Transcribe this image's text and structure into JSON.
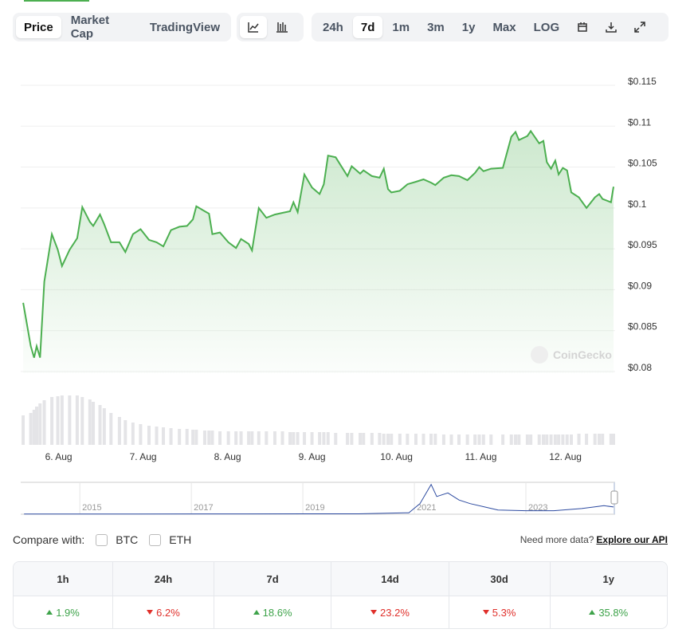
{
  "tabs": [
    "Price",
    "Market Cap",
    "TradingView"
  ],
  "active_tab": 0,
  "ranges": [
    "24h",
    "7d",
    "1m",
    "3m",
    "1y",
    "Max",
    "LOG"
  ],
  "active_range": 1,
  "chart_data": {
    "type": "line",
    "color": "#4caf50",
    "grid": true,
    "x": [
      5.58,
      5.67,
      5.71,
      5.74,
      5.78,
      5.83,
      5.92,
      5.99,
      6.04,
      6.13,
      6.22,
      6.28,
      6.37,
      6.41,
      6.49,
      6.54,
      6.62,
      6.72,
      6.79,
      6.88,
      6.97,
      7.07,
      7.16,
      7.24,
      7.33,
      7.43,
      7.52,
      7.59,
      7.63,
      7.73,
      7.78,
      7.82,
      7.91,
      8.01,
      8.1,
      8.16,
      8.25,
      8.29,
      8.37,
      8.46,
      8.56,
      8.65,
      8.74,
      8.78,
      8.83,
      8.91,
      9.0,
      9.09,
      9.14,
      9.19,
      9.28,
      9.42,
      9.47,
      9.57,
      9.61,
      9.71,
      9.8,
      9.85,
      9.9,
      9.94,
      10.04,
      10.13,
      10.23,
      10.32,
      10.41,
      10.46,
      10.56,
      10.65,
      10.74,
      10.84,
      10.93,
      10.98,
      11.03,
      11.12,
      11.26,
      11.36,
      11.41,
      11.45,
      11.55,
      11.59,
      11.69,
      11.74,
      11.78,
      11.83,
      11.88,
      11.92,
      11.97,
      12.02,
      12.07,
      12.16,
      12.25,
      12.35,
      12.4,
      12.44,
      12.54,
      12.57
    ],
    "values": [
      0.0884,
      0.0831,
      0.0817,
      0.0831,
      0.0817,
      0.091,
      0.0968,
      0.0949,
      0.0929,
      0.0949,
      0.0963,
      0.1001,
      0.0983,
      0.0978,
      0.0992,
      0.098,
      0.0958,
      0.0958,
      0.0946,
      0.0968,
      0.0974,
      0.0961,
      0.0958,
      0.0953,
      0.0973,
      0.0977,
      0.0978,
      0.0986,
      0.1002,
      0.0996,
      0.0993,
      0.0968,
      0.097,
      0.0958,
      0.0951,
      0.0962,
      0.0956,
      0.0948,
      0.1,
      0.0988,
      0.0992,
      0.0994,
      0.0996,
      0.1007,
      0.0995,
      0.1041,
      0.1025,
      0.1017,
      0.1029,
      0.1064,
      0.1062,
      0.1039,
      0.1051,
      0.1042,
      0.1046,
      0.1039,
      0.1037,
      0.1048,
      0.1023,
      0.1019,
      0.1021,
      0.1029,
      0.1032,
      0.1035,
      0.1031,
      0.1028,
      0.1037,
      0.104,
      0.1039,
      0.1034,
      0.1043,
      0.105,
      0.1045,
      0.1048,
      0.1049,
      0.1087,
      0.1093,
      0.1083,
      0.1088,
      0.1094,
      0.1079,
      0.1082,
      0.1056,
      0.1048,
      0.1058,
      0.1041,
      0.1049,
      0.1046,
      0.1019,
      0.1013,
      0.1,
      0.1013,
      0.1017,
      0.1011,
      0.1007,
      0.1026
    ],
    "xlim": [
      5.57,
      12.57
    ],
    "xticks": [
      {
        "value": 6,
        "label": "6. Aug"
      },
      {
        "value": 7,
        "label": "7. Aug"
      },
      {
        "value": 8,
        "label": "8. Aug"
      },
      {
        "value": 9,
        "label": "9. Aug"
      },
      {
        "value": 10,
        "label": "10. Aug"
      },
      {
        "value": 11,
        "label": "11. Aug"
      },
      {
        "value": 12,
        "label": "12. Aug"
      }
    ],
    "ylim": [
      0.08,
      0.115
    ],
    "yticks": [
      {
        "value": 0.08,
        "label": "$0.08"
      },
      {
        "value": 0.085,
        "label": "$0.085"
      },
      {
        "value": 0.09,
        "label": "$0.09"
      },
      {
        "value": 0.095,
        "label": "$0.095"
      },
      {
        "value": 0.1,
        "label": "$0.1"
      },
      {
        "value": 0.105,
        "label": "$0.105"
      },
      {
        "value": 0.11,
        "label": "$0.11"
      },
      {
        "value": 0.115,
        "label": "$0.115"
      }
    ],
    "volume": {
      "color": "#e4e4e7",
      "ylim": [
        0,
        62
      ],
      "values": [
        37,
        40,
        44,
        48,
        52,
        56,
        60,
        61,
        62,
        62,
        62,
        60,
        57,
        54,
        50,
        46,
        40,
        35,
        31,
        28,
        26,
        24,
        23,
        22,
        21,
        20,
        20,
        19,
        19,
        18,
        18,
        18,
        17,
        17,
        17,
        17,
        17,
        17,
        17,
        17,
        17,
        17,
        16,
        16,
        16,
        16,
        16,
        16,
        16,
        16,
        15,
        15,
        15,
        15,
        15,
        15,
        15,
        14,
        14,
        14,
        14,
        14,
        14,
        14,
        14,
        14,
        13,
        13,
        13,
        13,
        13,
        13,
        13,
        13,
        13,
        13,
        13,
        13,
        13,
        13,
        13,
        13,
        13,
        13,
        13,
        13,
        13,
        13,
        13,
        14,
        14,
        14,
        14,
        14,
        14,
        14
      ]
    },
    "navigator": {
      "color": "#2c4aa0",
      "xlim": [
        2013.94,
        2024.6
      ],
      "ylim": [
        0,
        0.45
      ],
      "xticks": [
        2015,
        2017,
        2019,
        2021,
        2023
      ],
      "x": [
        2014.0,
        2016.0,
        2018.0,
        2020.0,
        2020.9,
        2021.1,
        2021.3,
        2021.4,
        2021.6,
        2021.8,
        2022.0,
        2022.5,
        2023.0,
        2023.5,
        2024.0,
        2024.4,
        2024.6
      ],
      "values": [
        0.002,
        0.002,
        0.004,
        0.006,
        0.02,
        0.15,
        0.42,
        0.25,
        0.3,
        0.2,
        0.15,
        0.06,
        0.05,
        0.05,
        0.08,
        0.12,
        0.1
      ]
    }
  },
  "watermark": "CoinGecko",
  "compare": {
    "label": "Compare with:",
    "options": [
      "BTC",
      "ETH"
    ]
  },
  "api": {
    "prompt": "Need more data?",
    "link": "Explore our API"
  },
  "performance": {
    "headers": [
      "1h",
      "24h",
      "7d",
      "14d",
      "30d",
      "1y"
    ],
    "values": [
      "1.9%",
      "6.2%",
      "18.6%",
      "23.2%",
      "5.3%",
      "35.8%"
    ],
    "trends": [
      "up",
      "down",
      "up",
      "down",
      "down",
      "up"
    ]
  }
}
